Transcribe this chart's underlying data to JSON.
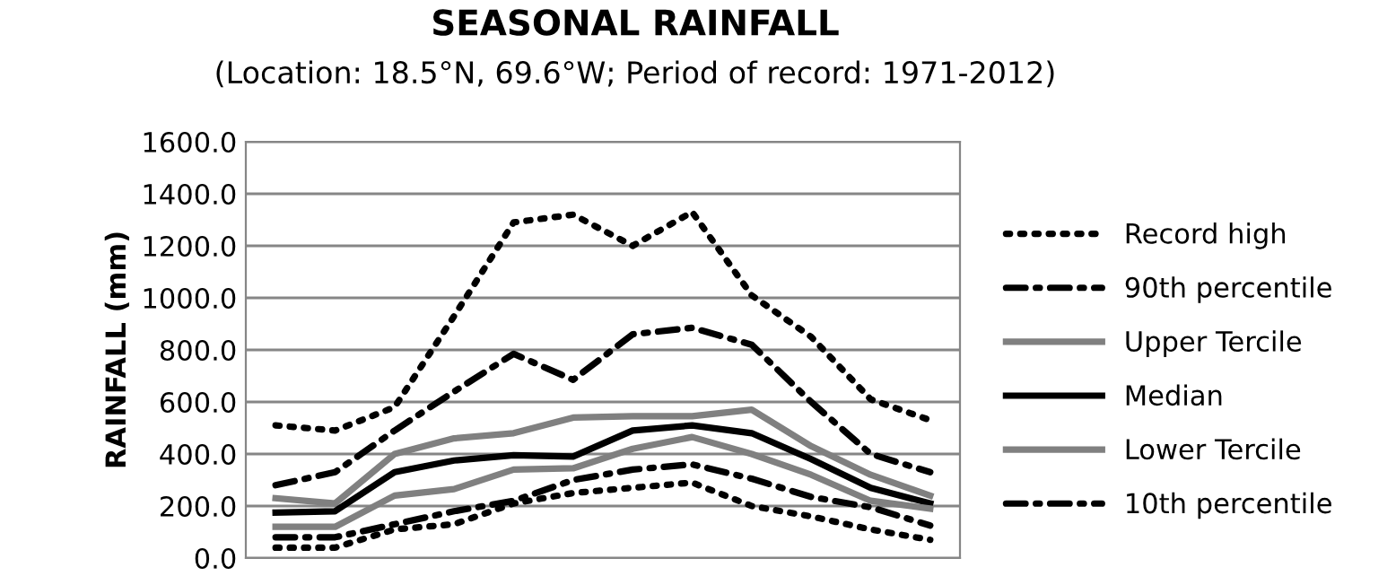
{
  "chart_data": {
    "type": "line",
    "title": "SEASONAL RAINFALL",
    "subtitle": "(Location: 18.5°N, 69.6°W; Period of record: 1971-2012)",
    "ylabel": "RAINFALL (mm)",
    "categories": [
      null,
      null,
      null,
      null,
      null,
      null,
      null,
      null,
      null,
      null,
      null,
      null
    ],
    "ylim": [
      0,
      1600
    ],
    "yticks": [
      {
        "value": 0,
        "label": "0.0"
      },
      {
        "value": 200,
        "label": "200.0"
      },
      {
        "value": 400,
        "label": "400.0"
      },
      {
        "value": 600,
        "label": "600.0"
      },
      {
        "value": 800,
        "label": "800.0"
      },
      {
        "value": 1000,
        "label": "1000.0"
      },
      {
        "value": 1200,
        "label": "1200.0"
      },
      {
        "value": 1400,
        "label": "1400.0"
      },
      {
        "value": 1600,
        "label": "1600.0"
      }
    ],
    "grid": "y",
    "legend": "right",
    "tick_labels": "y",
    "marker": "none",
    "series": [
      {
        "name": "Record high",
        "color": "#000000",
        "line_style": "dotted",
        "values": [
          510,
          490,
          580,
          930,
          1290,
          1320,
          1200,
          1330,
          1010,
          850,
          610,
          530
        ]
      },
      {
        "name": "90th percentile",
        "color": "#000000",
        "line_style": "dashdot",
        "values": [
          280,
          330,
          490,
          640,
          785,
          685,
          860,
          885,
          820,
          600,
          400,
          330
        ]
      },
      {
        "name": "Upper Tercile",
        "color": "#808080",
        "line_style": "solid",
        "values": [
          230,
          210,
          400,
          460,
          480,
          540,
          545,
          545,
          570,
          430,
          320,
          240
        ]
      },
      {
        "name": "Median",
        "color": "#000000",
        "line_style": "solid",
        "values": [
          175,
          180,
          330,
          375,
          395,
          390,
          490,
          510,
          480,
          380,
          270,
          210
        ]
      },
      {
        "name": "Lower Tercile",
        "color": "#808080",
        "line_style": "solid",
        "values": [
          120,
          120,
          240,
          265,
          340,
          345,
          420,
          465,
          400,
          320,
          220,
          190
        ]
      },
      {
        "name": "10th percentile",
        "color": "#000000",
        "line_style": "dashdot",
        "values": [
          80,
          80,
          130,
          180,
          220,
          300,
          340,
          360,
          305,
          235,
          195,
          125
        ]
      },
      {
        "color": "#000000",
        "line_style": "dotted",
        "values": [
          40,
          40,
          110,
          130,
          210,
          250,
          270,
          290,
          200,
          160,
          110,
          70
        ]
      }
    ]
  }
}
